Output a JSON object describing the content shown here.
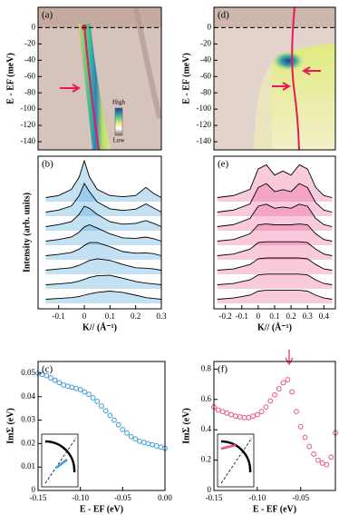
{
  "chart_data": [
    {
      "type": "image",
      "label": "(a)",
      "ylabel": "E - EF (meV)",
      "ylim": [
        -150,
        25
      ],
      "yticks": [
        0,
        -20,
        -40,
        -60,
        -80,
        -100,
        -120,
        -140
      ],
      "hline": 0,
      "colorbar": {
        "high": "High",
        "low": "Low"
      }
    },
    {
      "type": "image",
      "label": "(d)",
      "ylabel": "E - EF (meV)",
      "ylim": [
        -150,
        25
      ],
      "yticks": [
        0,
        -20,
        -40,
        -60,
        -80,
        -100,
        -120,
        -140
      ],
      "hline": 0
    },
    {
      "type": "waterfall",
      "label": "(b)",
      "ylabel": "Intensity (arb. units)",
      "xlabel": "K// (Å⁻¹)",
      "color": "#000000",
      "fill": "#3a9ad9",
      "xlim": [
        -0.18,
        0.3
      ],
      "xticks": [
        -0.1,
        0,
        0.1,
        0.2,
        0.3
      ],
      "x": [
        -0.15,
        -0.1,
        -0.05,
        -0.02,
        0,
        0.02,
        0.05,
        0.1,
        0.15,
        0.2,
        0.24,
        0.27,
        0.3
      ],
      "series": [
        {
          "values": [
            0.1,
            0.15,
            0.3,
            0.6,
            1.0,
            0.6,
            0.3,
            0.15,
            0.12,
            0.15,
            0.35,
            0.2,
            0.1
          ]
        },
        {
          "values": [
            0.1,
            0.15,
            0.25,
            0.5,
            0.8,
            0.6,
            0.35,
            0.18,
            0.14,
            0.17,
            0.3,
            0.2,
            0.1
          ]
        },
        {
          "values": [
            0.1,
            0.15,
            0.22,
            0.4,
            0.6,
            0.55,
            0.4,
            0.22,
            0.16,
            0.18,
            0.25,
            0.18,
            0.1
          ]
        },
        {
          "values": [
            0.1,
            0.14,
            0.2,
            0.32,
            0.45,
            0.5,
            0.42,
            0.28,
            0.18,
            0.17,
            0.2,
            0.16,
            0.1
          ]
        },
        {
          "values": [
            0.1,
            0.13,
            0.18,
            0.26,
            0.35,
            0.42,
            0.42,
            0.32,
            0.2,
            0.16,
            0.17,
            0.15,
            0.1
          ]
        },
        {
          "values": [
            0.1,
            0.13,
            0.16,
            0.22,
            0.28,
            0.34,
            0.38,
            0.34,
            0.24,
            0.16,
            0.15,
            0.13,
            0.1
          ]
        },
        {
          "values": [
            0.1,
            0.12,
            0.15,
            0.19,
            0.23,
            0.28,
            0.32,
            0.33,
            0.26,
            0.18,
            0.14,
            0.12,
            0.1
          ]
        },
        {
          "values": [
            0.1,
            0.12,
            0.14,
            0.17,
            0.2,
            0.23,
            0.27,
            0.3,
            0.27,
            0.2,
            0.14,
            0.12,
            0.1
          ]
        }
      ]
    },
    {
      "type": "waterfall",
      "label": "(e)",
      "xlabel": "K// (Å⁻¹)",
      "color": "#000000",
      "fill": "#e8508a",
      "xlim": [
        -0.27,
        0.47
      ],
      "xticks": [
        -0.2,
        -0.1,
        0,
        0.1,
        0.2,
        0.3,
        0.4
      ],
      "x": [
        -0.25,
        -0.15,
        -0.05,
        0,
        0.05,
        0.1,
        0.15,
        0.2,
        0.25,
        0.3,
        0.35,
        0.4,
        0.45
      ],
      "series": [
        {
          "values": [
            0.1,
            0.15,
            0.3,
            0.8,
            0.9,
            0.65,
            0.75,
            0.65,
            0.9,
            0.8,
            0.35,
            0.15,
            0.1
          ]
        },
        {
          "values": [
            0.1,
            0.15,
            0.3,
            0.7,
            0.8,
            0.6,
            0.65,
            0.6,
            0.8,
            0.7,
            0.33,
            0.15,
            0.1
          ]
        },
        {
          "values": [
            0.1,
            0.15,
            0.3,
            0.6,
            0.65,
            0.55,
            0.58,
            0.55,
            0.65,
            0.6,
            0.3,
            0.15,
            0.1
          ]
        },
        {
          "values": [
            0.1,
            0.14,
            0.28,
            0.5,
            0.52,
            0.5,
            0.5,
            0.5,
            0.52,
            0.5,
            0.28,
            0.14,
            0.1
          ]
        },
        {
          "values": [
            0.1,
            0.14,
            0.26,
            0.42,
            0.44,
            0.44,
            0.44,
            0.44,
            0.44,
            0.42,
            0.26,
            0.14,
            0.1
          ]
        },
        {
          "values": [
            0.1,
            0.13,
            0.24,
            0.38,
            0.4,
            0.4,
            0.4,
            0.4,
            0.4,
            0.38,
            0.24,
            0.13,
            0.1
          ]
        },
        {
          "values": [
            0.1,
            0.13,
            0.22,
            0.34,
            0.36,
            0.36,
            0.36,
            0.36,
            0.36,
            0.34,
            0.22,
            0.13,
            0.1
          ]
        },
        {
          "values": [
            0.1,
            0.13,
            0.2,
            0.3,
            0.32,
            0.32,
            0.32,
            0.32,
            0.32,
            0.3,
            0.2,
            0.13,
            0.1
          ]
        }
      ]
    },
    {
      "type": "scatter",
      "label": "(c)",
      "ylabel": "ImΣ (eV)",
      "xlabel": "E - EF (eV)",
      "color": "#3a9ad9",
      "xlim": [
        -0.15,
        0
      ],
      "xticks": [
        -0.15,
        {
          "value": -0.1,
          "label": "-0.10"
        },
        -0.05,
        {
          "value": 0,
          "label": "0.00"
        }
      ],
      "ylim": [
        0,
        0.055
      ],
      "yticks": [
        0,
        0.01,
        0.02,
        0.03,
        0.04,
        0.05
      ],
      "x": [
        -0.15,
        -0.145,
        -0.14,
        -0.135,
        -0.13,
        -0.125,
        -0.12,
        -0.115,
        -0.11,
        -0.105,
        -0.1,
        -0.095,
        -0.09,
        -0.085,
        -0.08,
        -0.075,
        -0.07,
        -0.065,
        -0.06,
        -0.055,
        -0.05,
        -0.045,
        -0.04,
        -0.035,
        -0.03,
        -0.025,
        -0.02,
        -0.015,
        -0.01,
        -0.005,
        0
      ],
      "values": [
        0.05,
        0.0495,
        0.049,
        0.048,
        0.047,
        0.046,
        0.045,
        0.0445,
        0.044,
        0.0435,
        0.043,
        0.042,
        0.041,
        0.0395,
        0.038,
        0.036,
        0.034,
        0.032,
        0.03,
        0.028,
        0.026,
        0.0245,
        0.023,
        0.022,
        0.021,
        0.0205,
        0.02,
        0.0195,
        0.019,
        0.0185,
        0.018
      ]
    },
    {
      "type": "scatter",
      "label": "(f)",
      "ylabel": "ImΣ (eV)",
      "xlabel": "E - EF (eV)",
      "color": "#e8508a",
      "xlim": [
        -0.15,
        -0.01
      ],
      "xticks": [
        -0.15,
        {
          "value": -0.1,
          "label": "-0.10"
        },
        -0.05
      ],
      "ylim": [
        0,
        0.85
      ],
      "yticks": [
        0,
        0.2,
        0.4,
        0.6,
        0.8
      ],
      "x": [
        -0.15,
        -0.145,
        -0.14,
        -0.135,
        -0.13,
        -0.125,
        -0.12,
        -0.115,
        -0.11,
        -0.105,
        -0.1,
        -0.095,
        -0.09,
        -0.085,
        -0.08,
        -0.075,
        -0.07,
        -0.065,
        -0.06,
        -0.055,
        -0.05,
        -0.045,
        -0.04,
        -0.035,
        -0.03,
        -0.025,
        -0.02,
        -0.015,
        -0.01
      ],
      "values": [
        0.55,
        0.53,
        0.52,
        0.51,
        0.5,
        0.49,
        0.485,
        0.48,
        0.48,
        0.49,
        0.5,
        0.52,
        0.55,
        0.59,
        0.63,
        0.67,
        0.71,
        0.73,
        0.65,
        0.52,
        0.42,
        0.35,
        0.29,
        0.24,
        0.2,
        0.18,
        0.17,
        0.22,
        0.38
      ]
    }
  ]
}
